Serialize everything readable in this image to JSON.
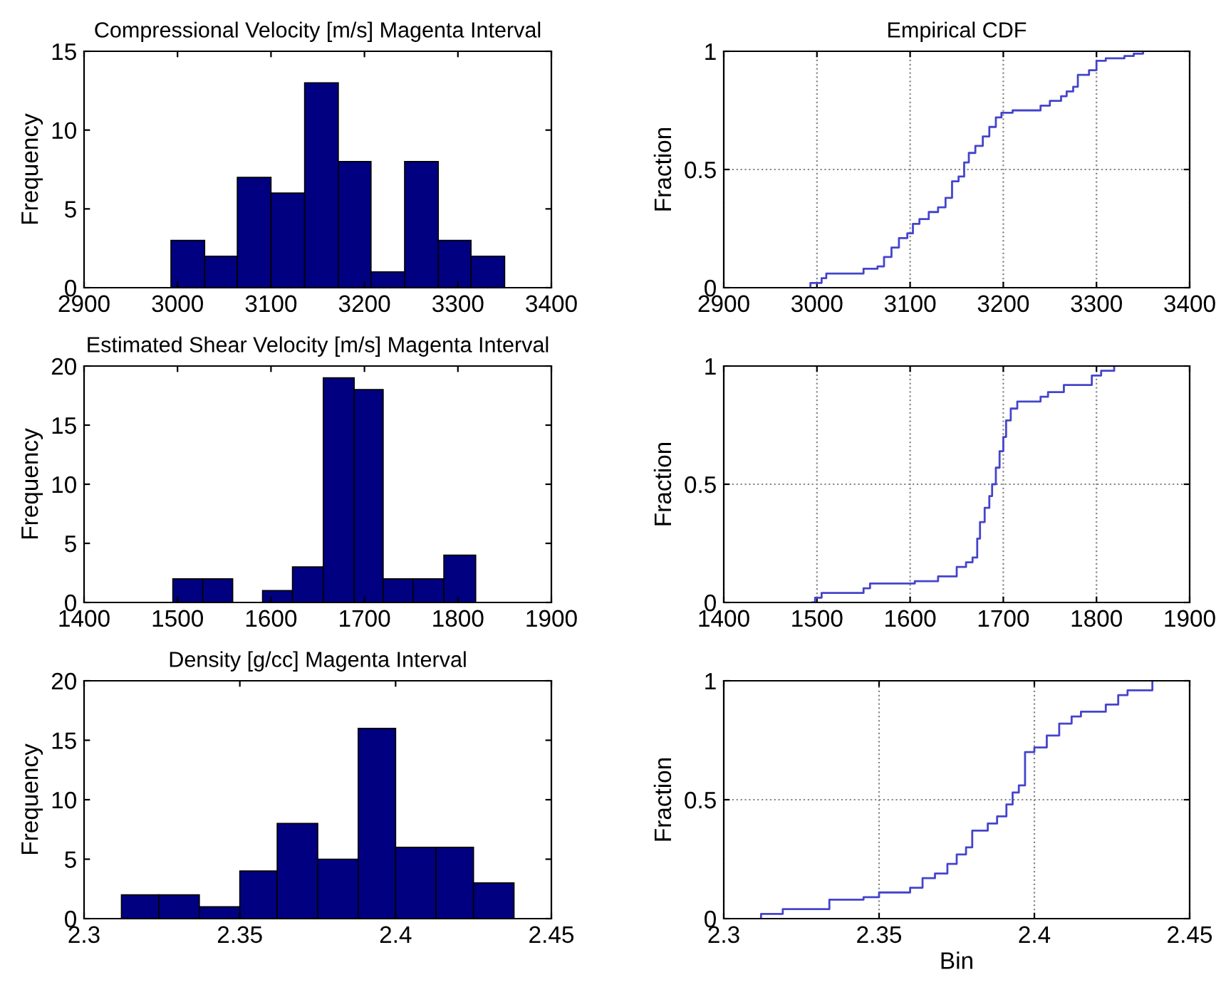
{
  "chart_data": [
    {
      "type": "histogram",
      "title": "Compressional Velocity [m/s] Magenta Interval",
      "ylabel": "Frequency",
      "color": "#000080",
      "bins": [
        2993,
        3029,
        3064,
        3100,
        3136,
        3172,
        3207,
        3243,
        3279,
        3314,
        3350
      ],
      "values": [
        3,
        2,
        7,
        6,
        13,
        8,
        1,
        8,
        3,
        2
      ],
      "xlim": [
        2900,
        3400
      ],
      "xticks": [
        2900,
        3000,
        3100,
        3200,
        3300,
        3400
      ],
      "ylim": [
        0,
        15
      ],
      "yticks": [
        0,
        5,
        10,
        15
      ]
    },
    {
      "type": "step",
      "title": "Empirical CDF",
      "ylabel": "Fraction",
      "grid": true,
      "color": "#4444cc",
      "x": [
        2993,
        2993,
        3005,
        3010,
        3050,
        3065,
        3072,
        3080,
        3088,
        3097,
        3103,
        3110,
        3120,
        3130,
        3138,
        3145,
        3152,
        3158,
        3163,
        3170,
        3178,
        3185,
        3192,
        3198,
        3210,
        3240,
        3250,
        3262,
        3268,
        3275,
        3280,
        3292,
        3300,
        3310,
        3330,
        3340,
        3350
      ],
      "values": [
        0,
        0.02,
        0.04,
        0.06,
        0.08,
        0.09,
        0.13,
        0.17,
        0.21,
        0.23,
        0.27,
        0.29,
        0.32,
        0.34,
        0.38,
        0.45,
        0.47,
        0.53,
        0.57,
        0.6,
        0.64,
        0.68,
        0.72,
        0.74,
        0.75,
        0.77,
        0.79,
        0.81,
        0.83,
        0.85,
        0.9,
        0.92,
        0.96,
        0.97,
        0.98,
        0.99,
        1
      ],
      "xlim": [
        2900,
        3400
      ],
      "xticks": [
        2900,
        3000,
        3100,
        3200,
        3300,
        3400
      ],
      "ylim": [
        0,
        1
      ],
      "yticks": [
        0,
        0.5,
        1
      ]
    },
    {
      "type": "histogram",
      "title": "Estimated Shear Velocity [m/s] Magenta Interval",
      "ylabel": "Frequency",
      "color": "#000080",
      "bins": [
        1495,
        1527,
        1559,
        1591,
        1623,
        1656,
        1689,
        1720,
        1752,
        1785,
        1819
      ],
      "values": [
        2,
        2,
        0,
        1,
        3,
        19,
        18,
        2,
        2,
        4
      ],
      "xlim": [
        1400,
        1900
      ],
      "xticks": [
        1400,
        1500,
        1600,
        1700,
        1800,
        1900
      ],
      "ylim": [
        0,
        20
      ],
      "yticks": [
        0,
        5,
        10,
        15,
        20
      ]
    },
    {
      "type": "step",
      "ylabel": "Fraction",
      "grid": true,
      "color": "#4444cc",
      "x": [
        1495,
        1498,
        1505,
        1550,
        1557,
        1605,
        1630,
        1650,
        1660,
        1667,
        1672,
        1675,
        1680,
        1685,
        1688,
        1692,
        1696,
        1700,
        1703,
        1708,
        1715,
        1740,
        1748,
        1765,
        1795,
        1805,
        1819
      ],
      "values": [
        0,
        0.02,
        0.04,
        0.06,
        0.08,
        0.09,
        0.11,
        0.15,
        0.17,
        0.19,
        0.27,
        0.34,
        0.4,
        0.45,
        0.5,
        0.57,
        0.64,
        0.7,
        0.77,
        0.82,
        0.85,
        0.87,
        0.89,
        0.92,
        0.96,
        0.98,
        1
      ],
      "xlim": [
        1400,
        1900
      ],
      "xticks": [
        1400,
        1500,
        1600,
        1700,
        1800,
        1900
      ],
      "ylim": [
        0,
        1
      ],
      "yticks": [
        0,
        0.5,
        1
      ]
    },
    {
      "type": "histogram",
      "title": "Density [g/cc] Magenta Interval",
      "ylabel": "Frequency",
      "color": "#000080",
      "bins": [
        2.312,
        2.324,
        2.337,
        2.35,
        2.362,
        2.375,
        2.388,
        2.4,
        2.413,
        2.425,
        2.438
      ],
      "values": [
        2,
        2,
        1,
        4,
        8,
        5,
        16,
        6,
        6,
        3
      ],
      "xlim": [
        2.3,
        2.45
      ],
      "xticks": [
        2.3,
        2.35,
        2.4,
        2.45
      ],
      "ylim": [
        0,
        20
      ],
      "yticks": [
        0,
        5,
        10,
        15,
        20
      ]
    },
    {
      "type": "step",
      "xlabel": "Bin",
      "ylabel": "Fraction",
      "grid": true,
      "color": "#4444cc",
      "x": [
        2.312,
        2.312,
        2.319,
        2.334,
        2.345,
        2.35,
        2.36,
        2.364,
        2.368,
        2.372,
        2.375,
        2.378,
        2.38,
        2.385,
        2.388,
        2.391,
        2.393,
        2.395,
        2.397,
        2.4,
        2.404,
        2.408,
        2.412,
        2.415,
        2.423,
        2.427,
        2.43,
        2.438
      ],
      "values": [
        0,
        0.02,
        0.04,
        0.08,
        0.09,
        0.11,
        0.13,
        0.17,
        0.19,
        0.23,
        0.27,
        0.3,
        0.37,
        0.4,
        0.43,
        0.48,
        0.53,
        0.56,
        0.7,
        0.72,
        0.77,
        0.82,
        0.85,
        0.87,
        0.9,
        0.94,
        0.96,
        1
      ],
      "xlim": [
        2.3,
        2.45
      ],
      "xticks": [
        2.3,
        2.35,
        2.4,
        2.45
      ],
      "ylim": [
        0,
        1
      ],
      "yticks": [
        0,
        0.5,
        1
      ]
    }
  ]
}
